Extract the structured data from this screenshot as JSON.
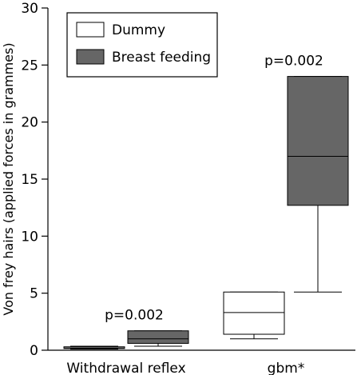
{
  "chart_data": {
    "type": "box",
    "title": "",
    "xlabel": "",
    "ylabel": "Von frey hairs (applied forces in grammes)",
    "ylim": [
      0,
      30
    ],
    "yticks": [
      0,
      5,
      10,
      15,
      20,
      25,
      30
    ],
    "ytick_labels": [
      "0",
      "5",
      "10",
      "15",
      "20",
      "25",
      "30"
    ],
    "categories": [
      "Withdrawal reflex",
      "gbm*"
    ],
    "legend_position": "top-left",
    "series": [
      {
        "name": "Dummy",
        "color": "#ffffff",
        "boxes": [
          {
            "category": "Withdrawal reflex",
            "min": 0.1,
            "q1": 0.15,
            "median": 0.2,
            "q3": 0.3,
            "max": 0.35
          },
          {
            "category": "gbm*",
            "min": 1.0,
            "q1": 1.4,
            "median": 3.3,
            "q3": 5.1,
            "max": 5.1
          }
        ]
      },
      {
        "name": "Breast feeding",
        "color": "#666666",
        "boxes": [
          {
            "category": "Withdrawal reflex",
            "min": 0.35,
            "q1": 0.6,
            "median": 1.0,
            "q3": 1.7,
            "max": 1.7
          },
          {
            "category": "gbm*",
            "min": 5.1,
            "q1": 12.7,
            "median": 17.0,
            "q3": 24.0,
            "max": 24.0
          }
        ]
      }
    ],
    "annotations": [
      {
        "category": "Withdrawal reflex",
        "text": "p=0.002"
      },
      {
        "category": "gbm*",
        "text": "p=0.002"
      }
    ]
  }
}
